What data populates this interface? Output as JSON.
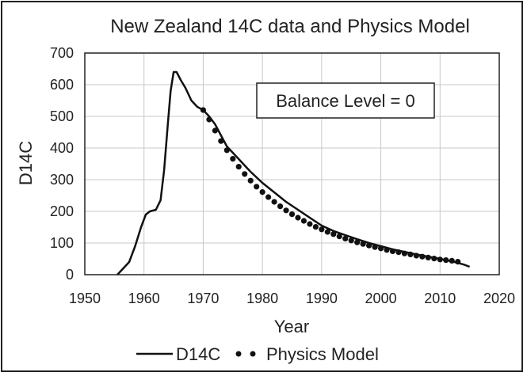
{
  "chart_data": {
    "type": "line",
    "title": "New Zealand 14C data and Physics Model",
    "xlabel": "Year",
    "ylabel": "D14C",
    "xlim": [
      1950,
      2020
    ],
    "ylim": [
      0,
      700
    ],
    "x_ticks": [
      "1950",
      "1960",
      "1970",
      "1980",
      "1990",
      "2000",
      "2010",
      "2020"
    ],
    "y_ticks": [
      "0",
      "100",
      "200",
      "300",
      "400",
      "500",
      "600",
      "700"
    ],
    "grid": true,
    "legend_position": "bottom",
    "annotation": "Balance Level = 0",
    "series": [
      {
        "name": "D14C",
        "style": "solid-line",
        "color": "#111111",
        "x": [
          1955.5,
          1956.5,
          1957.5,
          1958.5,
          1959.5,
          1960.3,
          1961.0,
          1962.0,
          1962.8,
          1963.4,
          1964.0,
          1964.5,
          1965.0,
          1965.5,
          1966.2,
          1967.0,
          1968.0,
          1969.0,
          1970.0,
          1971.0,
          1972.0,
          1973.0,
          1974.0,
          1975.0,
          1976.0,
          1977.0,
          1978.0,
          1980.0,
          1982.0,
          1984.0,
          1986.0,
          1988.0,
          1990.0,
          1992.0,
          1994.0,
          1996.0,
          1998.0,
          2000.0,
          2002.0,
          2004.0,
          2006.0,
          2008.0,
          2010.0,
          2012.0,
          2014.0,
          2015.0
        ],
        "y": [
          0,
          20,
          40,
          90,
          150,
          190,
          200,
          205,
          235,
          330,
          470,
          580,
          640,
          640,
          615,
          590,
          550,
          530,
          520,
          500,
          475,
          440,
          405,
          385,
          365,
          345,
          325,
          290,
          260,
          230,
          205,
          180,
          155,
          138,
          125,
          112,
          100,
          90,
          80,
          72,
          64,
          57,
          50,
          42,
          32,
          25
        ]
      },
      {
        "name": "Physics Model",
        "style": "dots",
        "color": "#111111",
        "x": [
          1970,
          1971,
          1972,
          1973,
          1974,
          1975,
          1976,
          1977,
          1978,
          1979,
          1980,
          1981,
          1982,
          1983,
          1984,
          1985,
          1986,
          1987,
          1988,
          1989,
          1990,
          1991,
          1992,
          1993,
          1994,
          1995,
          1996,
          1997,
          1998,
          1999,
          2000,
          2001,
          2002,
          2003,
          2004,
          2005,
          2006,
          2007,
          2008,
          2009,
          2010,
          2011,
          2012,
          2013
        ],
        "y": [
          520,
          490,
          455,
          422,
          393,
          366,
          341,
          318,
          297,
          278,
          261,
          245,
          230,
          216,
          203,
          191,
          180,
          170,
          160,
          151,
          143,
          135,
          128,
          121,
          114,
          108,
          102,
          97,
          92,
          87,
          83,
          78,
          74,
          71,
          67,
          64,
          60,
          57,
          54,
          51,
          48,
          46,
          44,
          41
        ]
      }
    ]
  }
}
